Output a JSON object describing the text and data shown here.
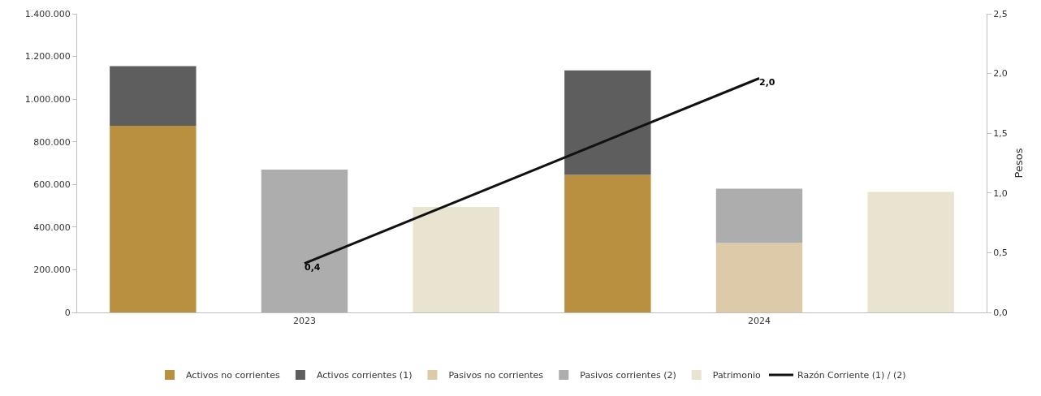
{
  "chart_data": {
    "type": "bar",
    "stacked": true,
    "categories": [
      null,
      "2023",
      null,
      null,
      "2024",
      null
    ],
    "series": [
      {
        "name": "Activos no corrientes",
        "color": "#b8903f",
        "values": [
          875000,
          null,
          null,
          645000,
          null,
          null
        ]
      },
      {
        "name": "Activos corrientes (1)",
        "color": "#5e5e5e",
        "values": [
          280000,
          null,
          null,
          490000,
          null,
          null
        ]
      },
      {
        "name": "Pasivos no corrientes",
        "color": "#dccaa8",
        "values": [
          null,
          null,
          null,
          null,
          325000,
          null
        ]
      },
      {
        "name": "Pasivos corrientes (2)",
        "color": "#adadad",
        "values": [
          null,
          670000,
          null,
          null,
          255000,
          null
        ]
      },
      {
        "name": "Patrimonio",
        "color": "#e9e4cf",
        "values": [
          null,
          null,
          495000,
          null,
          null,
          565000
        ]
      },
      {
        "name": "Razón Corriente (1) / (2)",
        "type": "line",
        "axis": "y2",
        "color": "#111111",
        "values": [
          null,
          0.41,
          null,
          null,
          1.96,
          null
        ],
        "value_labels": [
          null,
          "0,4",
          null,
          null,
          "2,0",
          null
        ]
      }
    ],
    "ylim": [
      0,
      1400000
    ],
    "yticks": [
      {
        "value": 0,
        "label": "0"
      },
      {
        "value": 200000,
        "label": "200.000"
      },
      {
        "value": 400000,
        "label": "400.000"
      },
      {
        "value": 600000,
        "label": "600.000"
      },
      {
        "value": 800000,
        "label": "800.000"
      },
      {
        "value": 1000000,
        "label": "1.000.000"
      },
      {
        "value": 1200000,
        "label": "1.200.000"
      },
      {
        "value": 1400000,
        "label": "1.400.000"
      }
    ],
    "y2lim": [
      0,
      2.5
    ],
    "y2ticks": [
      {
        "value": 0,
        "label": "0,0"
      },
      {
        "value": 0.5,
        "label": "0,5"
      },
      {
        "value": 1,
        "label": "1,0"
      },
      {
        "value": 1.5,
        "label": "1,5"
      },
      {
        "value": 2,
        "label": "2,0"
      },
      {
        "value": 2.5,
        "label": "2,5"
      }
    ],
    "y2label": "Pesos",
    "grid": false,
    "legend": "bottom"
  }
}
